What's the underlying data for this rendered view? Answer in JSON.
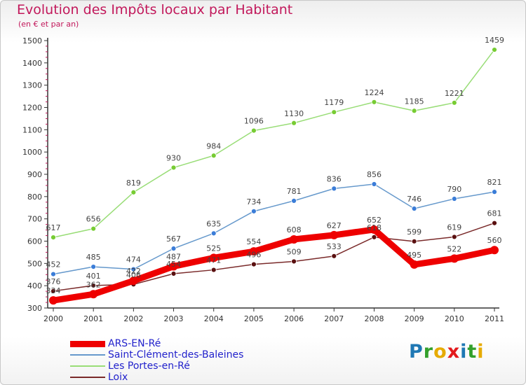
{
  "title": "Evolution des Impôts locaux par Habitant",
  "subtitle": "(en € et par an)",
  "logo": {
    "letters": [
      "P",
      "r",
      "o",
      "x",
      "i",
      "t",
      "i"
    ],
    "colors": [
      "#1f78b4",
      "#33a02c",
      "#e6ab02",
      "#e31a1c",
      "#1f78b4",
      "#33a02c",
      "#e6ab02"
    ]
  },
  "chart_data": {
    "type": "line",
    "title": "Evolution des Impôts locaux par Habitant",
    "subtitle": "(en € et par an)",
    "x": [
      2000,
      2001,
      2002,
      2003,
      2004,
      2005,
      2006,
      2007,
      2008,
      2009,
      2010,
      2011
    ],
    "y_ticks": [
      300,
      400,
      500,
      600,
      700,
      800,
      900,
      1000,
      1100,
      1200,
      1300,
      1400,
      1500
    ],
    "ylim": [
      300,
      1500
    ],
    "grid": false,
    "legend_placement": "bottom-left",
    "series": [
      {
        "name": "ARS-EN-Ré",
        "color": "#ee0000",
        "marker": "#ee0000",
        "width": "thick",
        "values": [
          334,
          362,
          422,
          487,
          525,
          554,
          608,
          627,
          652,
          495,
          522,
          560
        ]
      },
      {
        "name": "Saint-Clément-des-Baleines",
        "color": "#6699cc",
        "marker": "#3b7dd8",
        "width": "thin",
        "values": [
          452,
          485,
          474,
          567,
          635,
          734,
          781,
          836,
          856,
          746,
          790,
          821
        ]
      },
      {
        "name": "Les Portes-en-Ré",
        "color": "#99dd77",
        "marker": "#77cc33",
        "width": "thin",
        "values": [
          617,
          656,
          819,
          930,
          984,
          1096,
          1130,
          1179,
          1224,
          1185,
          1221,
          1459
        ]
      },
      {
        "name": "Loix",
        "color": "#7a2a2a",
        "marker": "#5a1010",
        "width": "thin",
        "values": [
          376,
          401,
          406,
          454,
          471,
          496,
          509,
          533,
          618,
          599,
          619,
          681
        ]
      }
    ]
  }
}
